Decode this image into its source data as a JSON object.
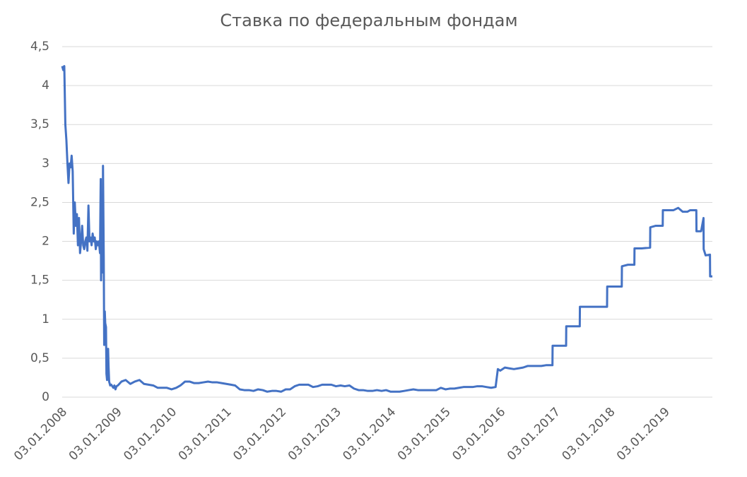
{
  "chart_data": {
    "type": "line",
    "title": "Ставка по федеральным фондам",
    "x": [
      "03.01.2008",
      "10.01.2008",
      "17.01.2008",
      "24.01.2008",
      "31.01.2008",
      "07.02.2008",
      "14.02.2008",
      "21.02.2008",
      "28.02.2008",
      "06.03.2008",
      "13.03.2008",
      "20.03.2008",
      "27.03.2008",
      "03.04.2008",
      "10.04.2008",
      "17.04.2008",
      "24.04.2008",
      "01.05.2008",
      "08.05.2008",
      "15.05.2008",
      "22.05.2008",
      "29.05.2008",
      "05.06.2008",
      "12.06.2008",
      "19.06.2008",
      "26.06.2008",
      "03.07.2008",
      "10.07.2008",
      "17.07.2008",
      "24.07.2008",
      "31.07.2008",
      "07.08.2008",
      "14.08.2008",
      "21.08.2008",
      "28.08.2008",
      "04.09.2008",
      "11.09.2008",
      "15.09.2008",
      "16.09.2008",
      "18.09.2008",
      "22.09.2008",
      "25.09.2008",
      "29.09.2008",
      "01.10.2008",
      "06.10.2008",
      "09.10.2008",
      "13.10.2008",
      "16.10.2008",
      "21.10.2008",
      "24.10.2008",
      "28.10.2008",
      "31.10.2008",
      "04.11.2008",
      "07.11.2008",
      "11.11.2008",
      "18.11.2008",
      "25.11.2008",
      "02.12.2008",
      "09.12.2008",
      "16.12.2008",
      "23.12.2008",
      "30.12.2008",
      "08.01.2009",
      "01.02.2009",
      "01.03.2009",
      "01.04.2009",
      "01.05.2009",
      "01.06.2009",
      "01.07.2009",
      "01.08.2009",
      "01.09.2009",
      "01.10.2009",
      "01.11.2009",
      "01.12.2009",
      "01.01.2010",
      "01.02.2010",
      "01.03.2010",
      "01.04.2010",
      "01.05.2010",
      "01.06.2010",
      "01.07.2010",
      "01.08.2010",
      "01.09.2010",
      "01.10.2010",
      "01.11.2010",
      "01.12.2010",
      "01.01.2011",
      "01.02.2011",
      "01.03.2011",
      "01.04.2011",
      "01.05.2011",
      "01.06.2011",
      "01.07.2011",
      "01.08.2011",
      "01.09.2011",
      "01.10.2011",
      "01.11.2011",
      "01.12.2011",
      "01.01.2012",
      "01.02.2012",
      "01.03.2012",
      "01.04.2012",
      "01.05.2012",
      "01.06.2012",
      "01.07.2012",
      "01.08.2012",
      "01.09.2012",
      "01.10.2012",
      "01.11.2012",
      "01.12.2012",
      "01.01.2013",
      "01.02.2013",
      "01.03.2013",
      "01.04.2013",
      "01.05.2013",
      "01.06.2013",
      "01.07.2013",
      "01.08.2013",
      "01.09.2013",
      "01.10.2013",
      "01.11.2013",
      "01.12.2013",
      "01.01.2014",
      "01.02.2014",
      "01.03.2014",
      "01.04.2014",
      "01.05.2014",
      "01.06.2014",
      "01.07.2014",
      "01.08.2014",
      "01.09.2014",
      "01.10.2014",
      "01.11.2014",
      "01.12.2014",
      "01.01.2015",
      "01.02.2015",
      "01.03.2015",
      "01.04.2015",
      "01.05.2015",
      "01.06.2015",
      "01.07.2015",
      "01.08.2015",
      "01.09.2015",
      "01.10.2015",
      "01.11.2015",
      "01.12.2015",
      "16.12.2015",
      "01.01.2016",
      "01.02.2016",
      "01.03.2016",
      "01.04.2016",
      "01.05.2016",
      "01.06.2016",
      "01.07.2016",
      "01.08.2016",
      "01.09.2016",
      "01.10.2016",
      "01.11.2016",
      "14.12.2016",
      "15.12.2016",
      "01.01.2017",
      "01.02.2017",
      "15.03.2017",
      "16.03.2017",
      "01.05.2017",
      "14.06.2017",
      "15.06.2017",
      "01.08.2017",
      "01.10.2017",
      "13.12.2017",
      "14.12.2017",
      "01.02.2018",
      "21.03.2018",
      "22.03.2018",
      "01.05.2018",
      "13.06.2018",
      "14.06.2018",
      "01.08.2018",
      "26.09.2018",
      "27.09.2018",
      "01.11.2018",
      "19.12.2018",
      "20.12.2018",
      "01.02.2019",
      "01.03.2019",
      "01.04.2019",
      "01.05.2019",
      "01.06.2019",
      "20.06.2019",
      "31.07.2019",
      "01.08.2019",
      "01.09.2019",
      "17.09.2019",
      "18.09.2019",
      "01.10.2019",
      "30.10.2019",
      "31.10.2019",
      "15.11.2019"
    ],
    "values": [
      4.25,
      4.2,
      4.25,
      3.5,
      3.3,
      3.0,
      2.75,
      3.0,
      2.95,
      3.1,
      2.9,
      2.1,
      2.5,
      2.2,
      2.35,
      1.95,
      2.3,
      1.85,
      2.0,
      2.2,
      1.95,
      1.9,
      2.0,
      2.05,
      1.88,
      2.46,
      2.0,
      2.05,
      1.95,
      2.1,
      2.0,
      2.05,
      1.9,
      2.0,
      1.95,
      2.0,
      1.85,
      2.64,
      2.8,
      1.5,
      2.0,
      2.4,
      1.6,
      2.97,
      1.8,
      0.67,
      1.1,
      0.95,
      0.9,
      0.3,
      0.22,
      0.3,
      0.62,
      0.4,
      0.2,
      0.15,
      0.16,
      0.14,
      0.12,
      0.15,
      0.1,
      0.14,
      0.15,
      0.2,
      0.22,
      0.17,
      0.2,
      0.22,
      0.17,
      0.16,
      0.15,
      0.12,
      0.12,
      0.12,
      0.1,
      0.12,
      0.15,
      0.2,
      0.2,
      0.18,
      0.18,
      0.19,
      0.2,
      0.19,
      0.19,
      0.18,
      0.17,
      0.16,
      0.15,
      0.1,
      0.09,
      0.09,
      0.08,
      0.1,
      0.09,
      0.07,
      0.08,
      0.08,
      0.07,
      0.1,
      0.1,
      0.14,
      0.16,
      0.16,
      0.16,
      0.13,
      0.14,
      0.16,
      0.16,
      0.16,
      0.14,
      0.15,
      0.14,
      0.15,
      0.11,
      0.09,
      0.09,
      0.08,
      0.08,
      0.09,
      0.08,
      0.09,
      0.07,
      0.07,
      0.07,
      0.08,
      0.09,
      0.1,
      0.09,
      0.09,
      0.09,
      0.09,
      0.09,
      0.12,
      0.1,
      0.11,
      0.11,
      0.12,
      0.13,
      0.13,
      0.13,
      0.14,
      0.14,
      0.13,
      0.12,
      0.13,
      0.36,
      0.34,
      0.38,
      0.37,
      0.36,
      0.37,
      0.38,
      0.4,
      0.4,
      0.4,
      0.4,
      0.41,
      0.41,
      0.66,
      0.66,
      0.66,
      0.66,
      0.91,
      0.91,
      0.91,
      1.16,
      1.16,
      1.16,
      1.16,
      1.42,
      1.42,
      1.42,
      1.68,
      1.7,
      1.7,
      1.91,
      1.91,
      1.92,
      2.18,
      2.2,
      2.2,
      2.4,
      2.4,
      2.4,
      2.43,
      2.38,
      2.38,
      2.4,
      2.4,
      2.13,
      2.13,
      2.3,
      1.9,
      1.82,
      1.83,
      1.55,
      1.55
    ],
    "color": "#4472c4",
    "xlim": [
      "03.01.2008",
      "15.11.2019"
    ],
    "xticks": [
      "03.01.2008",
      "03.01.2009",
      "03.01.2010",
      "03.01.2011",
      "03.01.2012",
      "03.01.2013",
      "03.01.2014",
      "03.01.2015",
      "03.01.2016",
      "03.01.2017",
      "03.01.2018",
      "03.01.2019"
    ],
    "ylim": [
      0,
      4.5
    ],
    "yticks": [
      0,
      {
        "value": 0.5,
        "label": "0,5"
      },
      1,
      {
        "value": 1.5,
        "label": "1,5"
      },
      2,
      {
        "value": 2.5,
        "label": "2,5"
      },
      3,
      {
        "value": 3.5,
        "label": "3,5"
      },
      4,
      {
        "value": 4.5,
        "label": "4,5"
      }
    ],
    "grid": true
  }
}
